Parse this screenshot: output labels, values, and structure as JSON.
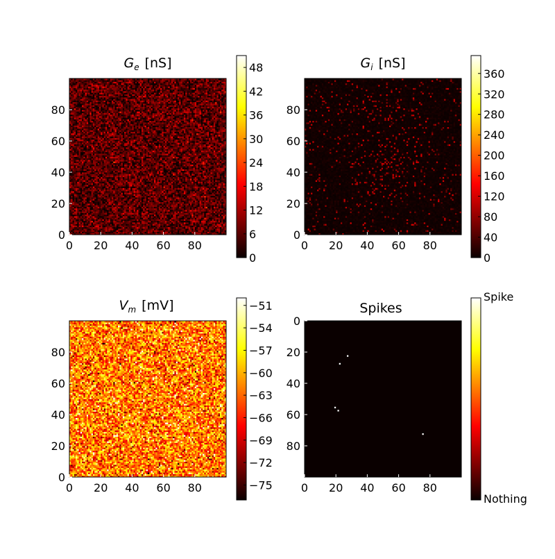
{
  "figure": {
    "background": "#ffffff"
  },
  "chart_data": [
    {
      "type": "heatmap",
      "title_symbol": "G",
      "title_sub": "e",
      "title_unit": "[nS]",
      "grid_size": 100,
      "origin": "lower",
      "xticks": [
        0,
        20,
        40,
        60,
        80
      ],
      "yticks": [
        0,
        20,
        40,
        60,
        80
      ],
      "colormap": "hot",
      "clim": [
        0,
        51
      ],
      "colorbar_ticks": [
        0,
        6,
        12,
        18,
        24,
        30,
        36,
        42,
        48
      ],
      "value_distribution": {
        "mean": 6,
        "spread": 5
      }
    },
    {
      "type": "heatmap",
      "title_symbol": "G",
      "title_sub": "i",
      "title_unit": "[nS]",
      "grid_size": 100,
      "origin": "lower",
      "xticks": [
        0,
        20,
        40,
        60,
        80
      ],
      "yticks": [
        0,
        20,
        40,
        60,
        80
      ],
      "colormap": "hot",
      "clim": [
        0,
        395
      ],
      "colorbar_ticks": [
        0,
        40,
        80,
        120,
        160,
        200,
        240,
        280,
        320,
        360
      ],
      "value_distribution": {
        "mean": 5,
        "spread": 8
      }
    },
    {
      "type": "heatmap",
      "title_symbol": "V",
      "title_sub": "m",
      "title_unit": "[mV]",
      "grid_size": 100,
      "origin": "lower",
      "xticks": [
        0,
        20,
        40,
        60,
        80
      ],
      "yticks": [
        0,
        20,
        40,
        60,
        80
      ],
      "colormap": "hot",
      "clim": [
        -77,
        -50
      ],
      "colorbar_ticks": [
        -75,
        -72,
        -69,
        -66,
        -63,
        -60,
        -57,
        -54,
        -51
      ],
      "colorbar_tick_labels": [
        "−75",
        "−72",
        "−69",
        "−66",
        "−63",
        "−60",
        "−57",
        "−54",
        "−51"
      ],
      "value_distribution": {
        "mean": -62,
        "spread": 4.5
      }
    },
    {
      "type": "heatmap",
      "title": "Spikes",
      "grid_size": 100,
      "origin": "upper",
      "xticks": [
        0,
        20,
        40,
        60,
        80
      ],
      "yticks": [
        0,
        20,
        40,
        60,
        80
      ],
      "colormap": "hot",
      "clim": [
        0,
        1
      ],
      "colorbar_labels": {
        "high": "Spike",
        "low": "Nothing"
      },
      "spikes": [
        [
          27,
          22
        ],
        [
          22,
          27
        ],
        [
          19,
          55
        ],
        [
          21,
          57
        ],
        [
          75,
          72
        ]
      ]
    }
  ]
}
